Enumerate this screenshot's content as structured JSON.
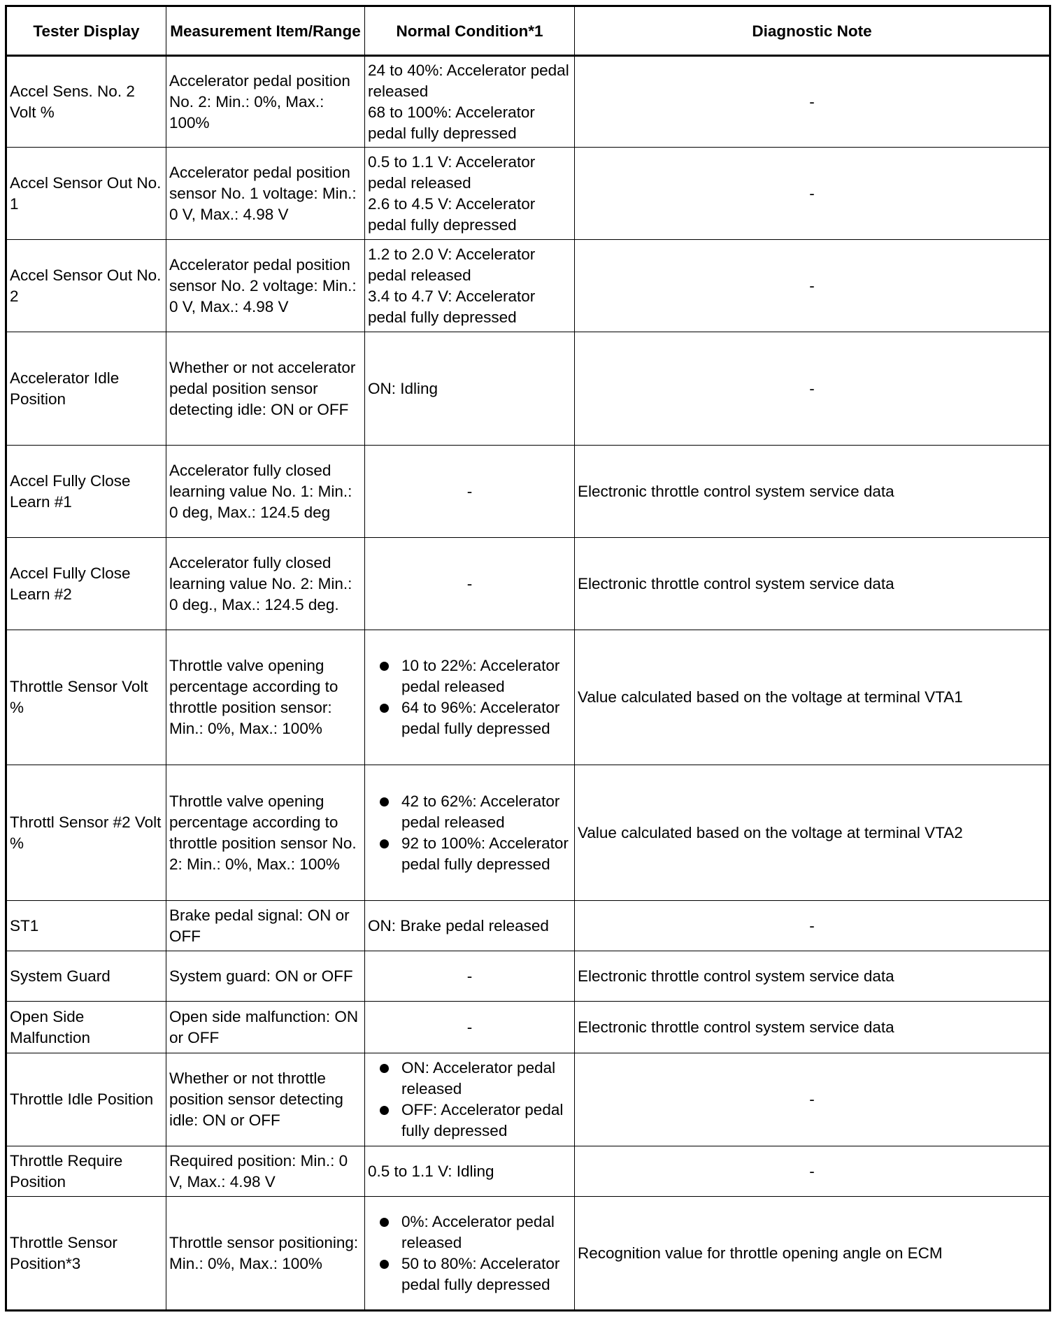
{
  "headers": [
    "Tester Display",
    "Measurement Item/Range",
    "Normal Condition*1",
    "Diagnostic Note"
  ],
  "rows": [
    {
      "display": "Accel Sens. No. 2 Volt %",
      "range": "Accelerator pedal position No. 2: Min.: 0%, Max.: 100%",
      "normal": [
        "24 to 40%: Accelerator pedal released",
        "68 to 100%: Accelerator pedal fully depressed"
      ],
      "bullets": false,
      "note": "-"
    },
    {
      "display": "Accel Sensor Out No. 1",
      "range": "Accelerator pedal position sensor No. 1 voltage: Min.: 0 V, Max.: 4.98 V",
      "normal": [
        "0.5 to 1.1 V: Accelerator pedal released",
        "2.6 to 4.5 V: Accelerator pedal fully depressed"
      ],
      "bullets": false,
      "note": "-"
    },
    {
      "display": "Accel Sensor Out No. 2",
      "range": "Accelerator pedal position sensor No. 2 voltage: Min.: 0 V, Max.: 4.98 V",
      "normal": [
        "1.2 to 2.0 V: Accelerator pedal released",
        "3.4 to 4.7 V: Accelerator pedal fully depressed"
      ],
      "bullets": false,
      "note": "-"
    },
    {
      "display": "Accelerator Idle Position",
      "range": "Whether or not accelerator pedal position sensor detecting idle: ON or OFF",
      "normal": [
        "ON: Idling"
      ],
      "bullets": false,
      "note": "-"
    },
    {
      "display": "Accel Fully Close Learn #1",
      "range": "Accelerator fully closed learning value No. 1: Min.: 0 deg, Max.: 124.5 deg",
      "normal": [
        "-"
      ],
      "bullets": false,
      "note": "Electronic throttle control system service data"
    },
    {
      "display": "Accel Fully Close Learn #2",
      "range": "Accelerator fully closed learning value No. 2: Min.: 0 deg., Max.: 124.5 deg.",
      "normal": [
        "-"
      ],
      "bullets": false,
      "note": "Electronic throttle control system service data"
    },
    {
      "display": "Throttle Sensor Volt %",
      "range": "Throttle valve opening percentage according to throttle position sensor: Min.: 0%, Max.: 100%",
      "normal": [
        "10 to 22%: Accelerator pedal released",
        "64 to 96%: Accelerator pedal fully depressed"
      ],
      "bullets": true,
      "note": "Value calculated based on the voltage at terminal VTA1"
    },
    {
      "display": "Throttl Sensor #2 Volt %",
      "range": "Throttle valve opening percentage according to throttle position sensor No. 2: Min.: 0%, Max.: 100%",
      "normal": [
        "42 to 62%: Accelerator pedal released",
        "92 to 100%: Accelerator pedal fully depressed"
      ],
      "bullets": true,
      "note": "Value calculated based on the voltage at terminal VTA2"
    },
    {
      "display": "ST1",
      "range": "Brake pedal signal: ON or OFF",
      "normal": [
        "ON: Brake pedal released"
      ],
      "bullets": false,
      "note": "-"
    },
    {
      "display": "System Guard",
      "range": "System guard: ON or OFF",
      "normal": [
        "-"
      ],
      "bullets": false,
      "note": "Electronic throttle control system service data"
    },
    {
      "display": "Open Side Malfunction",
      "range": "Open side malfunction: ON or OFF",
      "normal": [
        "-"
      ],
      "bullets": false,
      "note": "Electronic throttle control system service data"
    },
    {
      "display": "Throttle Idle Position",
      "range": "Whether or not throttle position sensor detecting idle: ON or OFF",
      "normal": [
        "ON: Accelerator pedal released",
        "OFF: Accelerator pedal fully depressed"
      ],
      "bullets": true,
      "note": "-"
    },
    {
      "display": "Throttle Require Position",
      "range": "Required position: Min.: 0 V, Max.: 4.98 V",
      "normal": [
        "0.5 to 1.1 V: Idling"
      ],
      "bullets": false,
      "note": "-"
    },
    {
      "display": "Throttle Sensor Position*3",
      "range": "Throttle sensor positioning: Min.: 0%, Max.: 100%",
      "normal": [
        "0%: Accelerator pedal released",
        "50 to 80%: Accelerator pedal fully depressed"
      ],
      "bullets": true,
      "note": "Recognition value for throttle opening angle on ECM"
    }
  ]
}
